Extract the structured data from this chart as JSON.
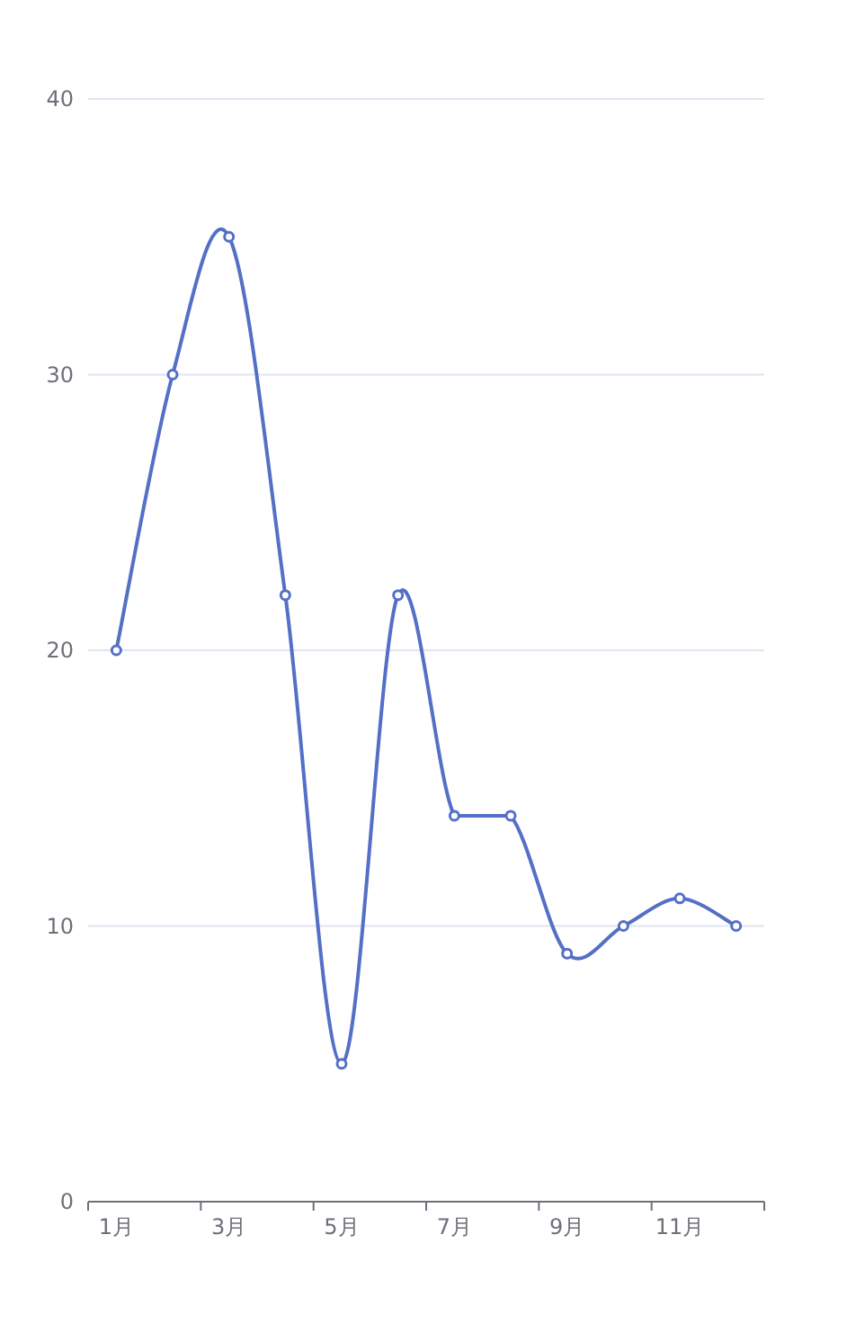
{
  "chart_data": {
    "type": "line",
    "categories": [
      "1月",
      null,
      "3月",
      null,
      "5月",
      null,
      "7月",
      null,
      "9月",
      null,
      "11月",
      null
    ],
    "series": [
      {
        "color": "#5470c6",
        "values": [
          20,
          30,
          35,
          22,
          5,
          22,
          14,
          14,
          9,
          10,
          11,
          10
        ]
      }
    ],
    "ylim": [
      0,
      40
    ],
    "yticks": [
      0,
      10,
      20,
      30,
      40
    ],
    "grid": "y",
    "marker": "circle",
    "line_style": "solid"
  }
}
